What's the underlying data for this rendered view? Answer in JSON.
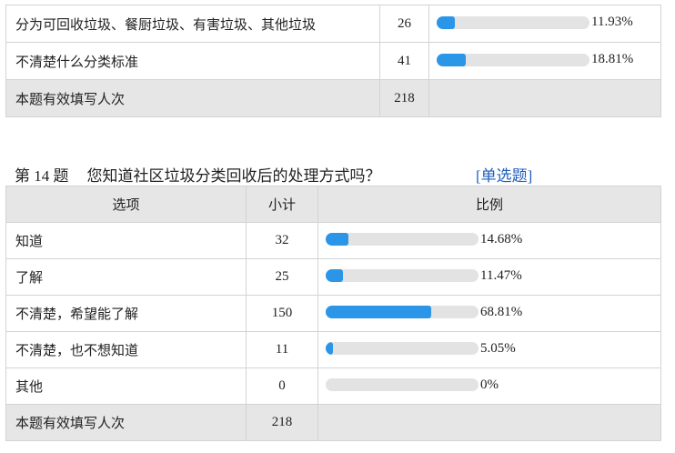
{
  "q13_tail": {
    "rows": [
      {
        "option": "分为可回收垃圾、餐厨垃圾、有害垃圾、其他垃圾",
        "count": "26",
        "percent": "11.93%",
        "ratio": 0.1193
      },
      {
        "option": "不清楚什么分类标准",
        "count": "41",
        "percent": "18.81%",
        "ratio": 0.1881
      }
    ],
    "total_label": "本题有效填写人次",
    "total_count": "218"
  },
  "q14": {
    "number_label": "第 14 题",
    "question": "您知道社区垃圾分类回收后的处理方式吗？",
    "type_label": "[单选题]",
    "headers": {
      "option": "选项",
      "count": "小计",
      "ratio": "比例"
    },
    "rows": [
      {
        "option": "知道",
        "count": "32",
        "percent": "14.68%",
        "ratio": 0.1468
      },
      {
        "option": "了解",
        "count": "25",
        "percent": "11.47%",
        "ratio": 0.1147
      },
      {
        "option": "不清楚，希望能了解",
        "count": "150",
        "percent": "68.81%",
        "ratio": 0.6881
      },
      {
        "option": "不清楚，也不想知道",
        "count": "11",
        "percent": "5.05%",
        "ratio": 0.0505
      },
      {
        "option": "其他",
        "count": "0",
        "percent": "0%",
        "ratio": 0
      }
    ],
    "total_label": "本题有效填写人次",
    "total_count": "218"
  },
  "colors": {
    "bar_fill": "#2b95e8",
    "bar_track": "#e3e3e3",
    "header_bg": "#e6e6e6",
    "type_link": "#1f5fbf"
  }
}
